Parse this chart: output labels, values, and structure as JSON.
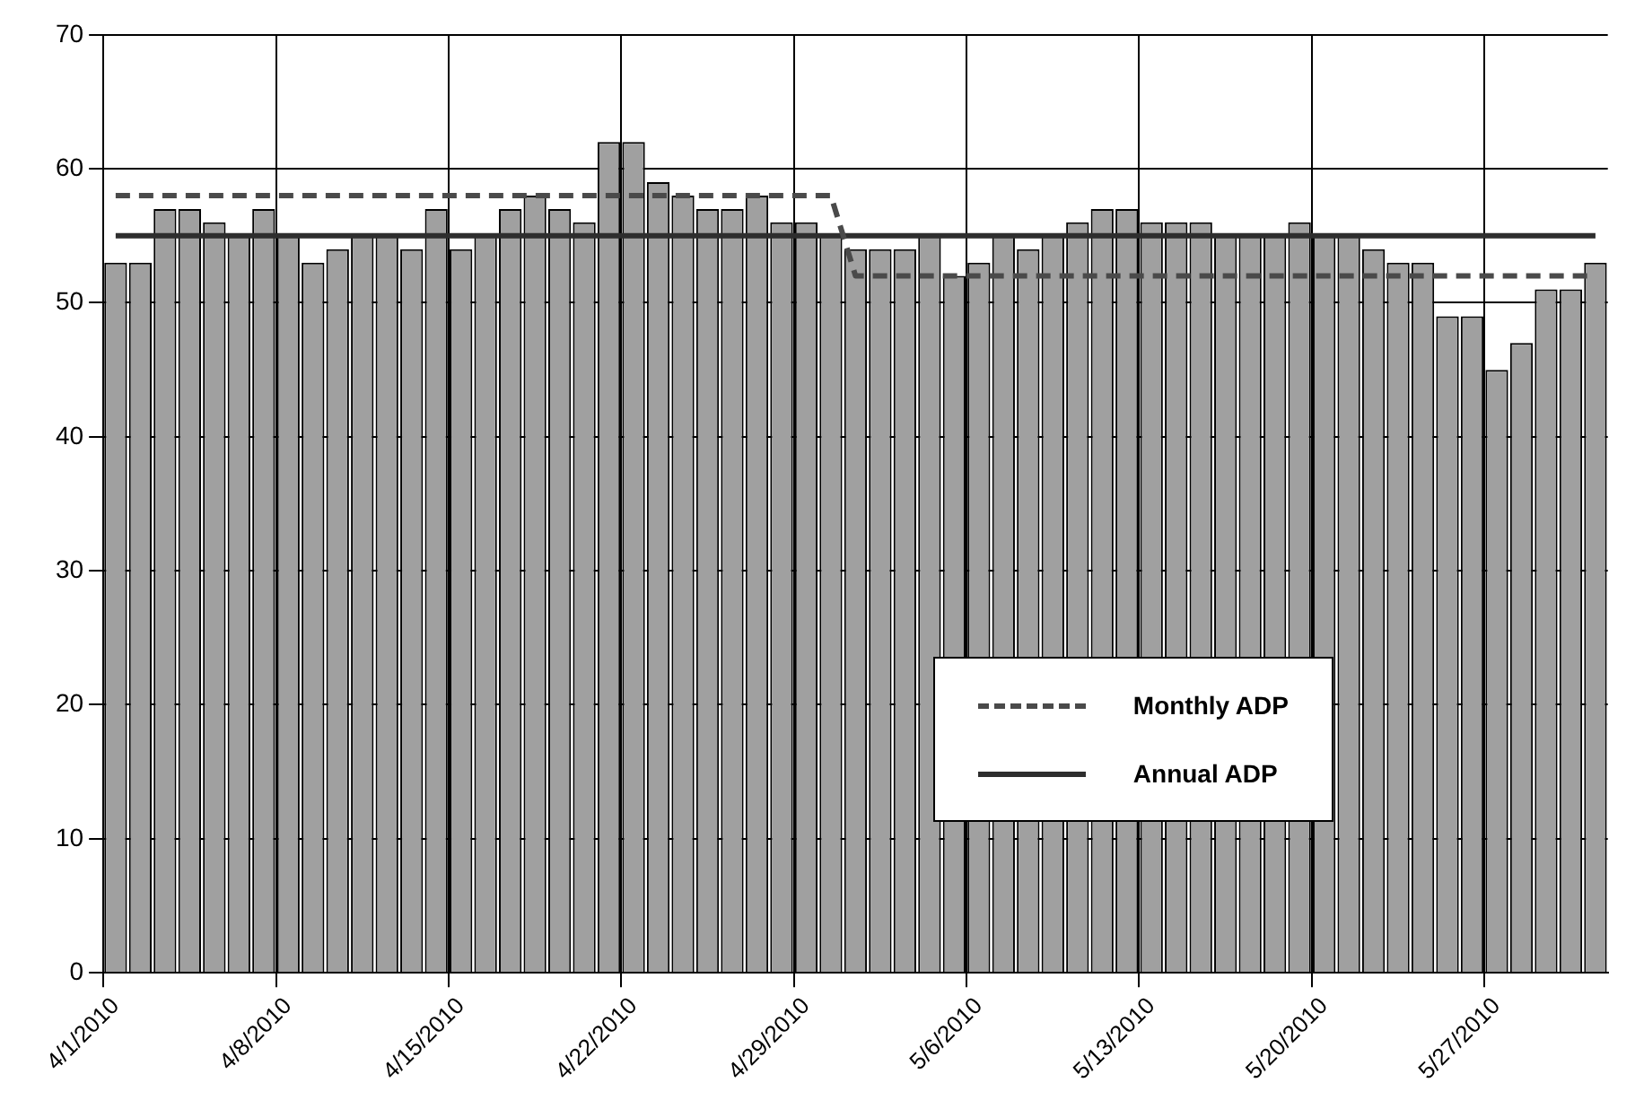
{
  "chart_data": {
    "type": "bar",
    "categories": [
      "4/1/2010",
      null,
      null,
      null,
      null,
      null,
      null,
      "4/8/2010",
      null,
      null,
      null,
      null,
      null,
      null,
      "4/15/2010",
      null,
      null,
      null,
      null,
      null,
      null,
      "4/22/2010",
      null,
      null,
      null,
      null,
      null,
      null,
      "4/29/2010",
      null,
      null,
      null,
      null,
      null,
      null,
      "5/6/2010",
      null,
      null,
      null,
      null,
      null,
      null,
      "5/13/2010",
      null,
      null,
      null,
      null,
      null,
      null,
      "5/20/2010",
      null,
      null,
      null,
      null,
      null,
      null,
      "5/27/2010",
      null,
      null,
      null,
      null
    ],
    "series": [
      {
        "color": "#a0a0a0",
        "values": [
          53,
          53,
          57,
          57,
          56,
          55,
          57,
          55,
          53,
          54,
          55,
          55,
          54,
          57,
          54,
          55,
          57,
          58,
          57,
          56,
          62,
          62,
          59,
          58,
          57,
          57,
          58,
          56,
          56,
          55,
          54,
          54,
          54,
          55,
          52,
          53,
          55,
          54,
          55,
          56,
          57,
          57,
          56,
          56,
          56,
          55,
          55,
          55,
          56,
          55,
          55,
          54,
          53,
          53,
          49,
          49,
          45,
          47,
          51,
          51,
          53
        ]
      },
      {
        "type": "line",
        "name": "Monthly ADP",
        "color": "#4a4a4a",
        "line_style": "dashed",
        "values": [
          58,
          58,
          58,
          58,
          58,
          58,
          58,
          58,
          58,
          58,
          58,
          58,
          58,
          58,
          58,
          58,
          58,
          58,
          58,
          58,
          58,
          58,
          58,
          58,
          58,
          58,
          58,
          58,
          58,
          58,
          52,
          52,
          52,
          52,
          52,
          52,
          52,
          52,
          52,
          52,
          52,
          52,
          52,
          52,
          52,
          52,
          52,
          52,
          52,
          52,
          52,
          52,
          52,
          52,
          52,
          52,
          52,
          52,
          52,
          52,
          52
        ]
      },
      {
        "type": "line",
        "name": "Annual ADP",
        "color": "#2e2e2e",
        "line_style": "solid",
        "values": [
          55,
          55,
          55,
          55,
          55,
          55,
          55,
          55,
          55,
          55,
          55,
          55,
          55,
          55,
          55,
          55,
          55,
          55,
          55,
          55,
          55,
          55,
          55,
          55,
          55,
          55,
          55,
          55,
          55,
          55,
          55,
          55,
          55,
          55,
          55,
          55,
          55,
          55,
          55,
          55,
          55,
          55,
          55,
          55,
          55,
          55,
          55,
          55,
          55,
          55,
          55,
          55,
          55,
          55,
          55,
          55,
          55,
          55,
          55,
          55,
          55
        ]
      }
    ],
    "ylim": [
      0,
      70
    ],
    "yticks": [
      0,
      10,
      20,
      30,
      40,
      50,
      60,
      70
    ],
    "grid": true,
    "legend": "bottom right",
    "marker": "none"
  }
}
